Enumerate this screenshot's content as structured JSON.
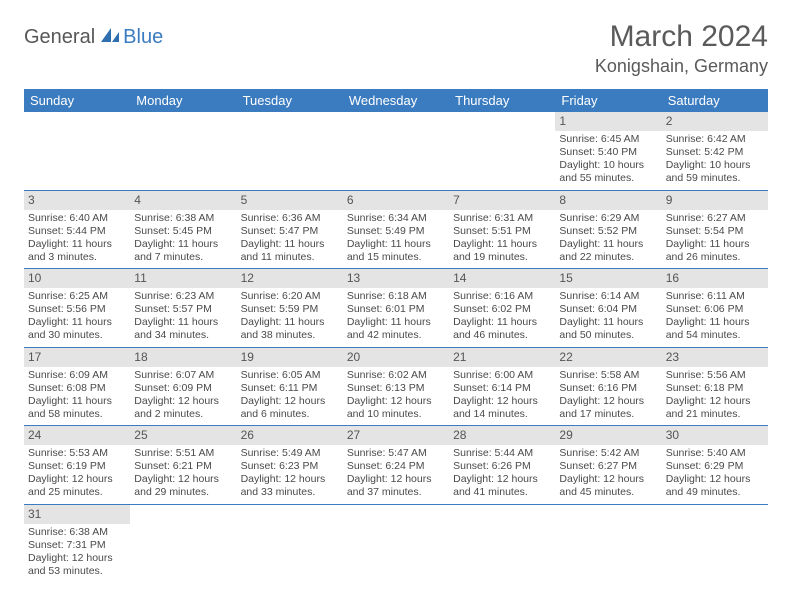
{
  "logo": {
    "general": "General",
    "blue": "Blue"
  },
  "title": "March 2024",
  "location": "Konigshain, Germany",
  "colors": {
    "header_bg": "#3b7bbf",
    "header_fg": "#ffffff",
    "daynum_bg": "#e4e4e4",
    "row_border": "#3b7bbf",
    "text": "#4a4a4a"
  },
  "weekdays": [
    "Sunday",
    "Monday",
    "Tuesday",
    "Wednesday",
    "Thursday",
    "Friday",
    "Saturday"
  ],
  "weeks": [
    [
      {
        "n": "",
        "sr": "",
        "ss": "",
        "dl": ""
      },
      {
        "n": "",
        "sr": "",
        "ss": "",
        "dl": ""
      },
      {
        "n": "",
        "sr": "",
        "ss": "",
        "dl": ""
      },
      {
        "n": "",
        "sr": "",
        "ss": "",
        "dl": ""
      },
      {
        "n": "",
        "sr": "",
        "ss": "",
        "dl": ""
      },
      {
        "n": "1",
        "sr": "Sunrise: 6:45 AM",
        "ss": "Sunset: 5:40 PM",
        "dl": "Daylight: 10 hours and 55 minutes."
      },
      {
        "n": "2",
        "sr": "Sunrise: 6:42 AM",
        "ss": "Sunset: 5:42 PM",
        "dl": "Daylight: 10 hours and 59 minutes."
      }
    ],
    [
      {
        "n": "3",
        "sr": "Sunrise: 6:40 AM",
        "ss": "Sunset: 5:44 PM",
        "dl": "Daylight: 11 hours and 3 minutes."
      },
      {
        "n": "4",
        "sr": "Sunrise: 6:38 AM",
        "ss": "Sunset: 5:45 PM",
        "dl": "Daylight: 11 hours and 7 minutes."
      },
      {
        "n": "5",
        "sr": "Sunrise: 6:36 AM",
        "ss": "Sunset: 5:47 PM",
        "dl": "Daylight: 11 hours and 11 minutes."
      },
      {
        "n": "6",
        "sr": "Sunrise: 6:34 AM",
        "ss": "Sunset: 5:49 PM",
        "dl": "Daylight: 11 hours and 15 minutes."
      },
      {
        "n": "7",
        "sr": "Sunrise: 6:31 AM",
        "ss": "Sunset: 5:51 PM",
        "dl": "Daylight: 11 hours and 19 minutes."
      },
      {
        "n": "8",
        "sr": "Sunrise: 6:29 AM",
        "ss": "Sunset: 5:52 PM",
        "dl": "Daylight: 11 hours and 22 minutes."
      },
      {
        "n": "9",
        "sr": "Sunrise: 6:27 AM",
        "ss": "Sunset: 5:54 PM",
        "dl": "Daylight: 11 hours and 26 minutes."
      }
    ],
    [
      {
        "n": "10",
        "sr": "Sunrise: 6:25 AM",
        "ss": "Sunset: 5:56 PM",
        "dl": "Daylight: 11 hours and 30 minutes."
      },
      {
        "n": "11",
        "sr": "Sunrise: 6:23 AM",
        "ss": "Sunset: 5:57 PM",
        "dl": "Daylight: 11 hours and 34 minutes."
      },
      {
        "n": "12",
        "sr": "Sunrise: 6:20 AM",
        "ss": "Sunset: 5:59 PM",
        "dl": "Daylight: 11 hours and 38 minutes."
      },
      {
        "n": "13",
        "sr": "Sunrise: 6:18 AM",
        "ss": "Sunset: 6:01 PM",
        "dl": "Daylight: 11 hours and 42 minutes."
      },
      {
        "n": "14",
        "sr": "Sunrise: 6:16 AM",
        "ss": "Sunset: 6:02 PM",
        "dl": "Daylight: 11 hours and 46 minutes."
      },
      {
        "n": "15",
        "sr": "Sunrise: 6:14 AM",
        "ss": "Sunset: 6:04 PM",
        "dl": "Daylight: 11 hours and 50 minutes."
      },
      {
        "n": "16",
        "sr": "Sunrise: 6:11 AM",
        "ss": "Sunset: 6:06 PM",
        "dl": "Daylight: 11 hours and 54 minutes."
      }
    ],
    [
      {
        "n": "17",
        "sr": "Sunrise: 6:09 AM",
        "ss": "Sunset: 6:08 PM",
        "dl": "Daylight: 11 hours and 58 minutes."
      },
      {
        "n": "18",
        "sr": "Sunrise: 6:07 AM",
        "ss": "Sunset: 6:09 PM",
        "dl": "Daylight: 12 hours and 2 minutes."
      },
      {
        "n": "19",
        "sr": "Sunrise: 6:05 AM",
        "ss": "Sunset: 6:11 PM",
        "dl": "Daylight: 12 hours and 6 minutes."
      },
      {
        "n": "20",
        "sr": "Sunrise: 6:02 AM",
        "ss": "Sunset: 6:13 PM",
        "dl": "Daylight: 12 hours and 10 minutes."
      },
      {
        "n": "21",
        "sr": "Sunrise: 6:00 AM",
        "ss": "Sunset: 6:14 PM",
        "dl": "Daylight: 12 hours and 14 minutes."
      },
      {
        "n": "22",
        "sr": "Sunrise: 5:58 AM",
        "ss": "Sunset: 6:16 PM",
        "dl": "Daylight: 12 hours and 17 minutes."
      },
      {
        "n": "23",
        "sr": "Sunrise: 5:56 AM",
        "ss": "Sunset: 6:18 PM",
        "dl": "Daylight: 12 hours and 21 minutes."
      }
    ],
    [
      {
        "n": "24",
        "sr": "Sunrise: 5:53 AM",
        "ss": "Sunset: 6:19 PM",
        "dl": "Daylight: 12 hours and 25 minutes."
      },
      {
        "n": "25",
        "sr": "Sunrise: 5:51 AM",
        "ss": "Sunset: 6:21 PM",
        "dl": "Daylight: 12 hours and 29 minutes."
      },
      {
        "n": "26",
        "sr": "Sunrise: 5:49 AM",
        "ss": "Sunset: 6:23 PM",
        "dl": "Daylight: 12 hours and 33 minutes."
      },
      {
        "n": "27",
        "sr": "Sunrise: 5:47 AM",
        "ss": "Sunset: 6:24 PM",
        "dl": "Daylight: 12 hours and 37 minutes."
      },
      {
        "n": "28",
        "sr": "Sunrise: 5:44 AM",
        "ss": "Sunset: 6:26 PM",
        "dl": "Daylight: 12 hours and 41 minutes."
      },
      {
        "n": "29",
        "sr": "Sunrise: 5:42 AM",
        "ss": "Sunset: 6:27 PM",
        "dl": "Daylight: 12 hours and 45 minutes."
      },
      {
        "n": "30",
        "sr": "Sunrise: 5:40 AM",
        "ss": "Sunset: 6:29 PM",
        "dl": "Daylight: 12 hours and 49 minutes."
      }
    ],
    [
      {
        "n": "31",
        "sr": "Sunrise: 6:38 AM",
        "ss": "Sunset: 7:31 PM",
        "dl": "Daylight: 12 hours and 53 minutes."
      },
      {
        "n": "",
        "sr": "",
        "ss": "",
        "dl": ""
      },
      {
        "n": "",
        "sr": "",
        "ss": "",
        "dl": ""
      },
      {
        "n": "",
        "sr": "",
        "ss": "",
        "dl": ""
      },
      {
        "n": "",
        "sr": "",
        "ss": "",
        "dl": ""
      },
      {
        "n": "",
        "sr": "",
        "ss": "",
        "dl": ""
      },
      {
        "n": "",
        "sr": "",
        "ss": "",
        "dl": ""
      }
    ]
  ]
}
